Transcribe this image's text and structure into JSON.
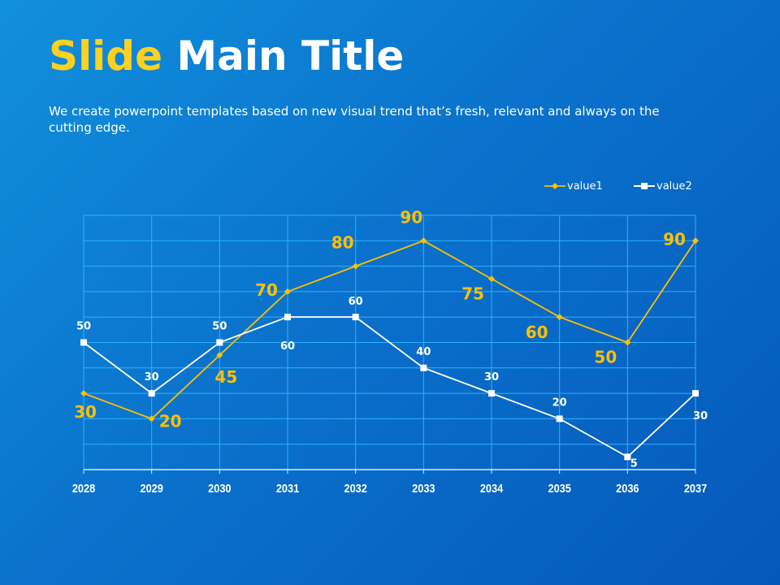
{
  "title": {
    "highlight": "Slide",
    "rest": "Main Title"
  },
  "subtitle": "We create powerpoint templates based on new visual trend that’s fresh, relevant and always on the cutting edge.",
  "chart_data": {
    "type": "line",
    "categories": [
      "2028",
      "2029",
      "2030",
      "2031",
      "2032",
      "2033",
      "2034",
      "2035",
      "2036",
      "2037"
    ],
    "series": [
      {
        "name": "value1",
        "color": "#ffc000",
        "marker": "diamond",
        "values": [
          30,
          20,
          45,
          70,
          80,
          90,
          75,
          60,
          50,
          90
        ]
      },
      {
        "name": "value2",
        "color": "#ffffff",
        "marker": "square",
        "values": [
          50,
          30,
          50,
          60,
          60,
          40,
          30,
          20,
          5,
          30
        ]
      }
    ],
    "ylim": [
      0,
      100
    ],
    "grid": true,
    "legend": "top-right",
    "gridColor": "#2ab4ff"
  }
}
